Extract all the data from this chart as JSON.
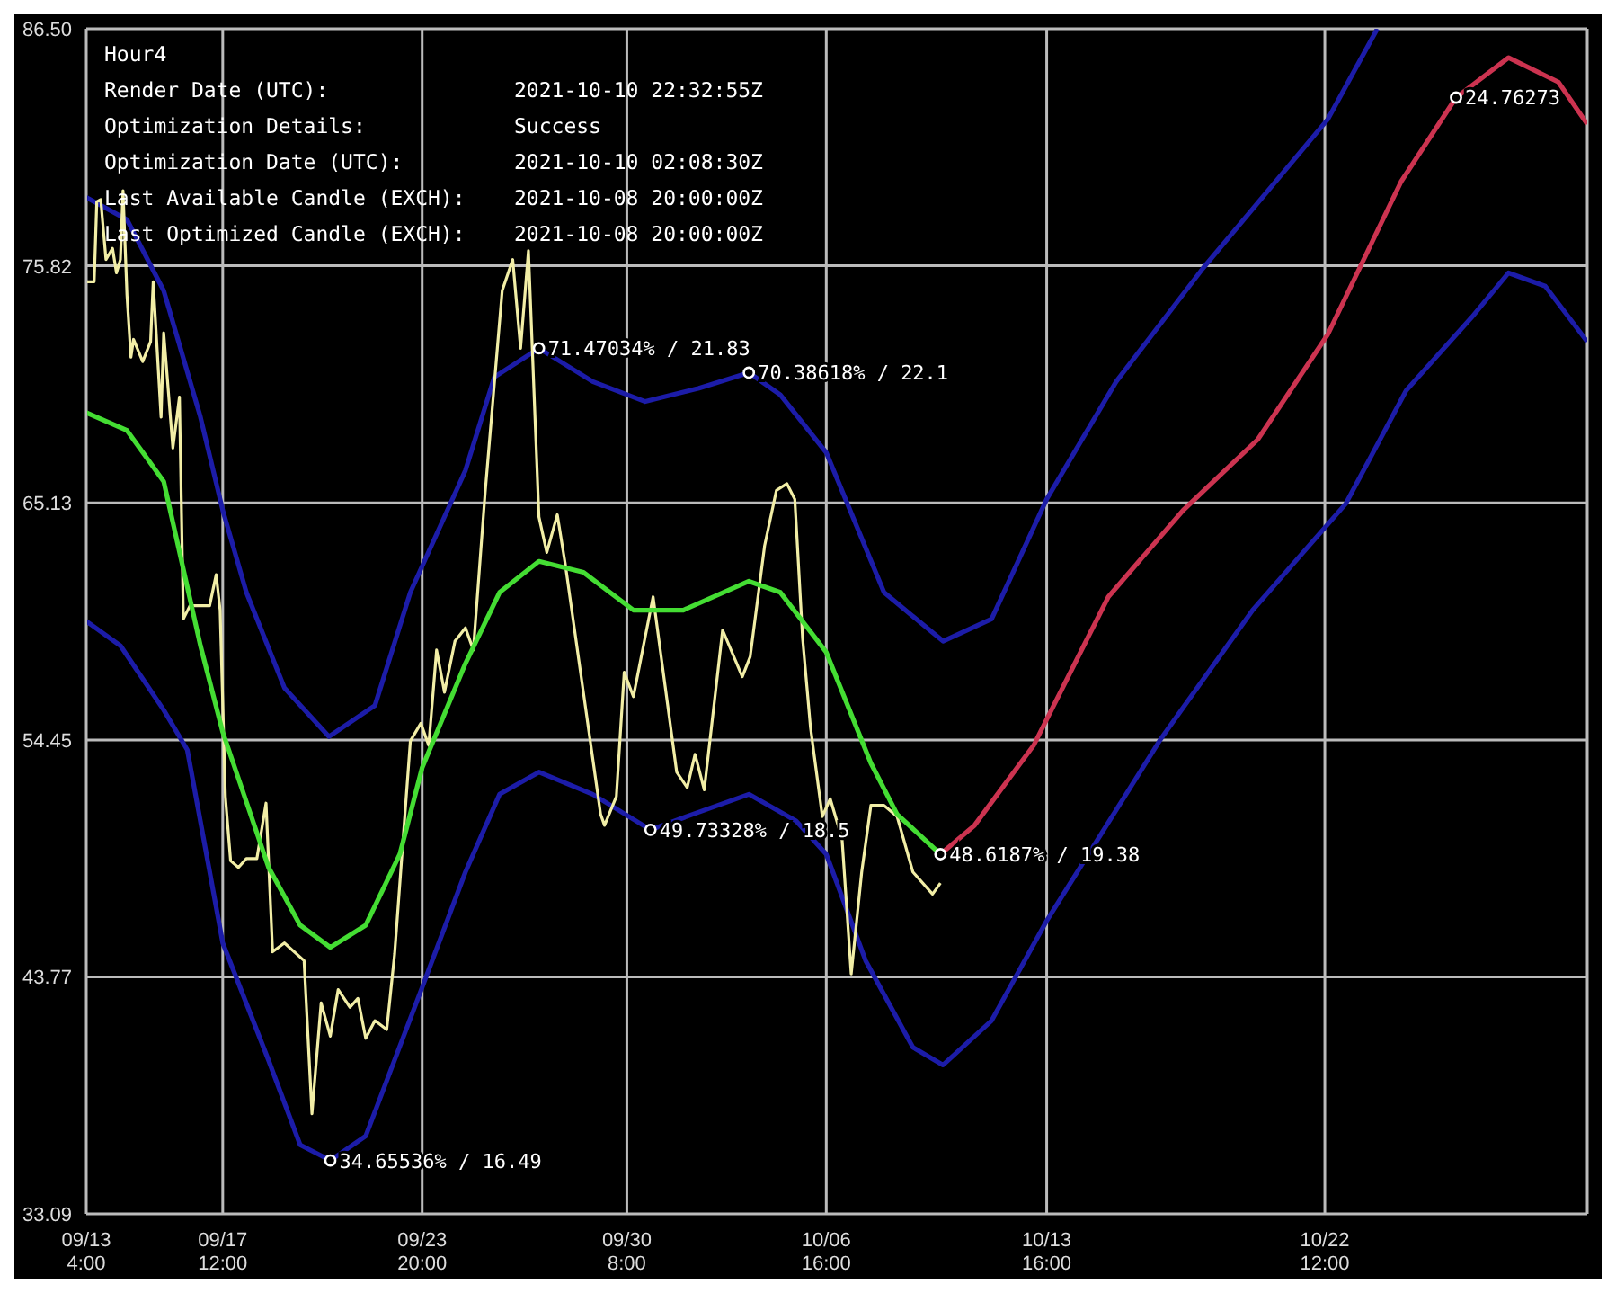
{
  "chart_data": {
    "type": "line",
    "title": "Hour4",
    "annotations": [
      "Render Date (UTC):",
      "2021-10-10 22:32:55Z",
      "Optimization Details:",
      "Success",
      "Optimization Date (UTC):",
      "2021-10-10 02:08:30Z",
      "Last Available Candle (EXCH):",
      "2021-10-08 20:00:00Z",
      "Last Optimized Candle (EXCH):",
      "2021-10-08 20:00:00Z",
      {
        "text": "71.47034% / 21.83",
        "x": "2021-09-27T13:00",
        "y": 72.1
      },
      {
        "text": "70.38618% / 22.1",
        "x": "2021-10-04T05:00",
        "y": 71.0
      },
      {
        "text": "49.73328% / 18.5",
        "x": "2021-10-01T02:00",
        "y": 50.4
      },
      {
        "text": "34.65536% / 16.49",
        "x": "2021-09-20T22:00",
        "y": 35.5
      },
      {
        "text": "48.6187% / 19.38",
        "x": "2021-10-10T07:00",
        "y": 49.3
      },
      {
        "text": "24.76273",
        "x": "2021-10-26T16:00",
        "y": 83.4
      }
    ],
    "xlim": [
      "2021-09-13T04:00",
      "2021-10-30T20:00"
    ],
    "xticks": [
      {
        "value": "2021-09-13T04:00",
        "label": "09/13 4:00"
      },
      {
        "value": "2021-09-17T12:00",
        "label": "09/17 12:00"
      },
      {
        "value": "2021-09-23T20:00",
        "label": "09/23 20:00"
      },
      {
        "value": "2021-09-30T08:00",
        "label": "09/30 8:00"
      },
      {
        "value": "2021-10-06T16:00",
        "label": "10/06 16:00"
      },
      {
        "value": "2021-10-13T16:00",
        "label": "10/13 16:00"
      },
      {
        "value": "2021-10-22T12:00",
        "label": "10/22 12:00"
      }
    ],
    "ylim": [
      33.09,
      86.5
    ],
    "yticks": [
      33.09,
      43.77,
      54.45,
      65.13,
      75.82,
      {
        "value": 86.5,
        "label": "86.50"
      }
    ],
    "grid": true,
    "marker": "none",
    "series": [
      {
        "color": "#1c1ca8",
        "x": [
          "2021-09-13T04:00",
          "2021-09-14T11:00",
          "2021-09-15T15:00",
          "2021-09-16T19:00",
          "2021-09-17T12:00",
          "2021-09-18T06:00",
          "2021-09-19T11:00",
          "2021-09-20T21:00",
          "2021-09-22T08:00",
          "2021-09-23T11:00",
          "2021-09-25T05:00",
          "2021-09-26T03:00",
          "2021-09-27T13:00",
          "2021-09-29T06:00",
          "2021-09-30T22:00",
          "2021-10-02T15:00",
          "2021-10-04T05:00",
          "2021-10-05T05:00",
          "2021-10-06T16:00",
          "2021-10-08T12:00",
          "2021-10-10T09:00",
          "2021-10-11T22:00",
          "2021-10-13T16:00",
          "2021-10-15T21:00",
          "2021-10-18T15:00",
          "2021-10-22T14:00",
          "2021-10-24T04:00"
        ],
        "values": [
          78.9,
          77.9,
          74.7,
          69.0,
          64.8,
          61.1,
          56.8,
          54.6,
          56.0,
          61.1,
          66.6,
          70.8,
          72.1,
          70.6,
          69.7,
          70.3,
          71.0,
          70.0,
          67.4,
          61.1,
          58.9,
          59.9,
          65.3,
          70.6,
          75.7,
          82.4,
          86.5
        ]
      },
      {
        "color": "#1c1ca8",
        "x": [
          "2021-09-13T04:00",
          "2021-09-14T06:00",
          "2021-09-15T15:00",
          "2021-09-16T09:00",
          "2021-09-17T12:00",
          "2021-09-18T23:00",
          "2021-09-19T23:00",
          "2021-09-20T22:00",
          "2021-09-22T01:00",
          "2021-09-23T20:00",
          "2021-09-25T05:00",
          "2021-09-26T07:00",
          "2021-09-27T13:00",
          "2021-09-29T06:00",
          "2021-10-01T02:00",
          "2021-10-02T15:00",
          "2021-10-04T05:00",
          "2021-10-05T17:00",
          "2021-10-06T16:00",
          "2021-10-07T22:00",
          "2021-10-09T10:00",
          "2021-10-10T09:00",
          "2021-10-11T22:00",
          "2021-10-13T16:00",
          "2021-10-17T07:00",
          "2021-10-20T05:00",
          "2021-10-23T04:00",
          "2021-10-25T02:00",
          "2021-10-27T04:00",
          "2021-10-28T08:00",
          "2021-10-29T12:00",
          "2021-10-30T20:00"
        ],
        "values": [
          59.8,
          58.7,
          55.8,
          54.0,
          45.3,
          40.0,
          36.2,
          35.5,
          36.6,
          43.3,
          48.5,
          52.0,
          53.0,
          52.0,
          50.4,
          51.2,
          52.0,
          50.8,
          49.3,
          44.5,
          40.6,
          39.8,
          41.8,
          46.3,
          54.5,
          60.3,
          65.1,
          70.2,
          73.5,
          75.5,
          74.9,
          72.4
        ]
      },
      {
        "color": "#f2eea6",
        "x": [
          "2021-09-13T04:00",
          "2021-09-13T10:00",
          "2021-09-13T12:00",
          "2021-09-13T15:00",
          "2021-09-13T19:00",
          "2021-09-14T00:00",
          "2021-09-14T03:00",
          "2021-09-14T06:00",
          "2021-09-14T08:00",
          "2021-09-14T11:00",
          "2021-09-14T14:00",
          "2021-09-14T16:00",
          "2021-09-14T23:00",
          "2021-09-15T05:00",
          "2021-09-15T07:00",
          "2021-09-15T13:00",
          "2021-09-15T15:00",
          "2021-09-15T22:00",
          "2021-09-16T03:00",
          "2021-09-16T06:00",
          "2021-09-16T11:00",
          "2021-09-17T02:00",
          "2021-09-17T07:00",
          "2021-09-17T10:00",
          "2021-09-17T14:00",
          "2021-09-17T18:00",
          "2021-09-18T00:00",
          "2021-09-18T06:00",
          "2021-09-18T14:00",
          "2021-09-18T21:00",
          "2021-09-19T02:00",
          "2021-09-19T11:00",
          "2021-09-20T02:00",
          "2021-09-20T08:00",
          "2021-09-20T15:00",
          "2021-09-20T22:00",
          "2021-09-21T04:00",
          "2021-09-21T13:00",
          "2021-09-21T19:00",
          "2021-09-22T01:00",
          "2021-09-22T08:00",
          "2021-09-22T17:00",
          "2021-09-22T23:00",
          "2021-09-23T11:00",
          "2021-09-23T19:00",
          "2021-09-24T01:00",
          "2021-09-24T07:00",
          "2021-09-24T13:00",
          "2021-09-24T21:00",
          "2021-09-25T05:00",
          "2021-09-25T11:00",
          "2021-09-25T20:00",
          "2021-09-26T09:00",
          "2021-09-26T17:00",
          "2021-09-26T23:00",
          "2021-09-27T05:00",
          "2021-09-27T13:00",
          "2021-09-27T19:00",
          "2021-09-28T03:00",
          "2021-09-28T09:00",
          "2021-09-29T12:00",
          "2021-09-29T15:00",
          "2021-09-30T00:00",
          "2021-09-30T06:00",
          "2021-09-30T13:00",
          "2021-10-01T04:00",
          "2021-10-01T22:00",
          "2021-10-02T06:00",
          "2021-10-02T12:00",
          "2021-10-02T19:00",
          "2021-10-03T09:00",
          "2021-10-04T00:00",
          "2021-10-04T06:00",
          "2021-10-04T17:00",
          "2021-10-05T02:00",
          "2021-10-05T10:00",
          "2021-10-05T16:00",
          "2021-10-05T22:00",
          "2021-10-06T04:00",
          "2021-10-06T13:00",
          "2021-10-06T19:00",
          "2021-10-07T04:00",
          "2021-10-07T11:00",
          "2021-10-07T19:00",
          "2021-10-08T02:00",
          "2021-10-08T12:00",
          "2021-10-08T22:00",
          "2021-10-09T10:00",
          "2021-10-10T01:00",
          "2021-10-10T07:00"
        ],
        "values": [
          75.1,
          75.1,
          78.7,
          78.8,
          76.1,
          76.6,
          75.5,
          76.1,
          79.2,
          74.5,
          71.7,
          72.5,
          71.5,
          72.4,
          75.1,
          69.0,
          72.8,
          67.6,
          69.9,
          59.9,
          60.5,
          60.5,
          61.9,
          60.3,
          51.9,
          49.0,
          48.7,
          49.1,
          49.1,
          51.6,
          44.9,
          45.3,
          44.5,
          37.6,
          42.6,
          41.1,
          43.2,
          42.4,
          42.8,
          41.0,
          41.8,
          41.4,
          44.8,
          54.4,
          55.2,
          54.2,
          58.5,
          56.6,
          58.9,
          59.5,
          58.5,
          65.6,
          74.7,
          76.1,
          72.1,
          76.5,
          64.5,
          62.9,
          64.6,
          62.4,
          51.1,
          50.6,
          51.9,
          57.5,
          56.4,
          60.9,
          53.0,
          52.3,
          53.8,
          52.2,
          59.4,
          57.3,
          58.2,
          63.2,
          65.7,
          66.0,
          65.3,
          59.0,
          55.0,
          51.0,
          51.8,
          50.0,
          43.9,
          48.5,
          51.5,
          51.5,
          51.0,
          48.5,
          47.5,
          48.0
        ]
      },
      {
        "color": "#44dd33",
        "x": [
          "2021-09-13T04:00",
          "2021-09-14T11:00",
          "2021-09-15T15:00",
          "2021-09-16T19:00",
          "2021-09-17T12:00",
          "2021-09-18T23:00",
          "2021-09-19T23:00",
          "2021-09-20T22:00",
          "2021-09-22T01:00",
          "2021-09-23T03:00",
          "2021-09-23T20:00",
          "2021-09-25T05:00",
          "2021-09-26T07:00",
          "2021-09-27T13:00",
          "2021-09-28T23:00",
          "2021-09-30T13:00",
          "2021-10-02T03:00",
          "2021-10-04T05:00",
          "2021-10-05T05:00",
          "2021-10-06T16:00",
          "2021-10-08T02:00",
          "2021-10-08T22:00",
          "2021-10-10T07:00"
        ],
        "values": [
          69.2,
          68.4,
          66.1,
          58.7,
          54.8,
          48.7,
          46.1,
          45.1,
          46.1,
          49.3,
          53.2,
          57.9,
          61.1,
          62.5,
          62.0,
          60.3,
          60.3,
          61.6,
          61.1,
          58.4,
          53.4,
          51.1,
          49.3
        ]
      },
      {
        "color": "#cc3350",
        "x": [
          "2021-10-10T07:00",
          "2021-10-11T09:00",
          "2021-10-13T06:00",
          "2021-10-15T15:00",
          "2021-10-18T00:00",
          "2021-10-20T09:00",
          "2021-10-22T14:00",
          "2021-10-24T22:00",
          "2021-10-26T16:00",
          "2021-10-28T08:00",
          "2021-10-29T22:00",
          "2021-10-30T20:00"
        ],
        "values": [
          49.3,
          50.6,
          54.2,
          60.9,
          64.8,
          68.0,
          72.7,
          79.6,
          83.4,
          85.2,
          84.1,
          82.2
        ]
      }
    ]
  }
}
